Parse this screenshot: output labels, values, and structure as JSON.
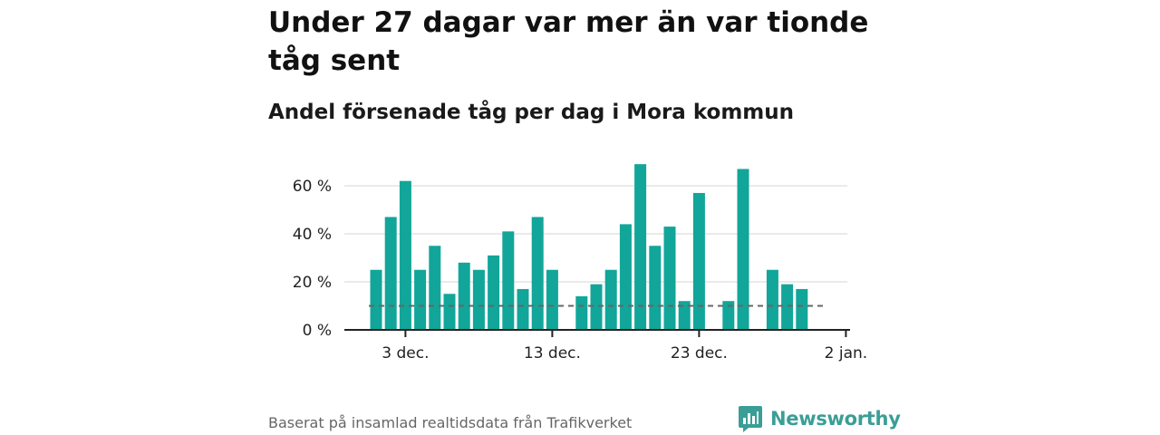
{
  "title": "Under 27 dagar var mer än var tionde tåg sent",
  "subtitle": "Andel försenade tåg per dag i Mora kommun",
  "source": "Baserat på insamlad realtidsdata från Trafikverket",
  "brand": {
    "name": "Newsworthy",
    "color": "#3a9e96",
    "icon": "newsworthy-logo-icon"
  },
  "colors": {
    "bar": "#11a699",
    "grid": "#dddddd",
    "axis": "#222222",
    "reference_line": "#666666"
  },
  "chart_data": {
    "type": "bar",
    "x": [
      "2023-12-01",
      "2023-12-02",
      "2023-12-03",
      "2023-12-04",
      "2023-12-05",
      "2023-12-06",
      "2023-12-07",
      "2023-12-08",
      "2023-12-09",
      "2023-12-10",
      "2023-12-11",
      "2023-12-12",
      "2023-12-13",
      "2023-12-14",
      "2023-12-15",
      "2023-12-16",
      "2023-12-17",
      "2023-12-18",
      "2023-12-19",
      "2023-12-20",
      "2023-12-21",
      "2023-12-22",
      "2023-12-23",
      "2023-12-24",
      "2023-12-25",
      "2023-12-26",
      "2023-12-27",
      "2023-12-28",
      "2023-12-29",
      "2023-12-30",
      "2023-12-31"
    ],
    "values": [
      25,
      47,
      62,
      25,
      35,
      15,
      28,
      25,
      31,
      41,
      17,
      47,
      25,
      null,
      14,
      19,
      25,
      44,
      69,
      35,
      43,
      12,
      57,
      null,
      12,
      67,
      null,
      25,
      19,
      17,
      null
    ],
    "y_ticks": [
      0,
      20,
      40,
      60
    ],
    "y_tick_labels": [
      "0 %",
      "20 %",
      "40 %",
      "60 %"
    ],
    "x_ticks": [
      "2023-12-03",
      "2023-12-13",
      "2023-12-23",
      "2024-01-02"
    ],
    "x_tick_labels": [
      "3 dec.",
      "13 dec.",
      "23 dec.",
      "2 jan."
    ],
    "ylim": [
      0,
      60
    ],
    "reference_line": {
      "value": 10,
      "style": "dashed"
    },
    "grid": true,
    "legend": false
  }
}
